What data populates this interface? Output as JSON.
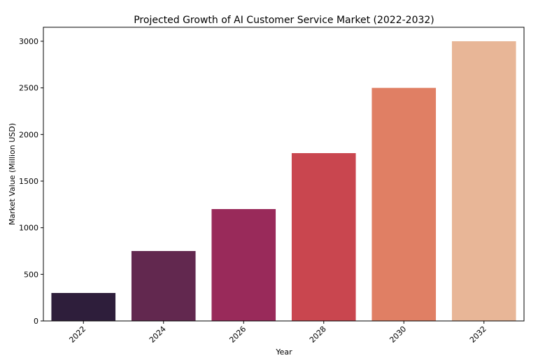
{
  "chart_data": {
    "type": "bar",
    "title": "Projected Growth of AI Customer Service Market (2022-2032)",
    "xlabel": "Year",
    "ylabel": "Market Value (Million USD)",
    "categories": [
      "2022",
      "2024",
      "2026",
      "2028",
      "2030",
      "2032"
    ],
    "values": [
      300,
      750,
      1200,
      1800,
      2500,
      3000
    ],
    "colors": [
      "#2e1e3b",
      "#62284f",
      "#992a5a",
      "#c9464f",
      "#e07f64",
      "#e8b697"
    ],
    "ylim": [
      0,
      3150
    ],
    "yticks": [
      0,
      500,
      1000,
      1500,
      2000,
      2500,
      3000
    ],
    "grid": false,
    "legend": "none"
  }
}
